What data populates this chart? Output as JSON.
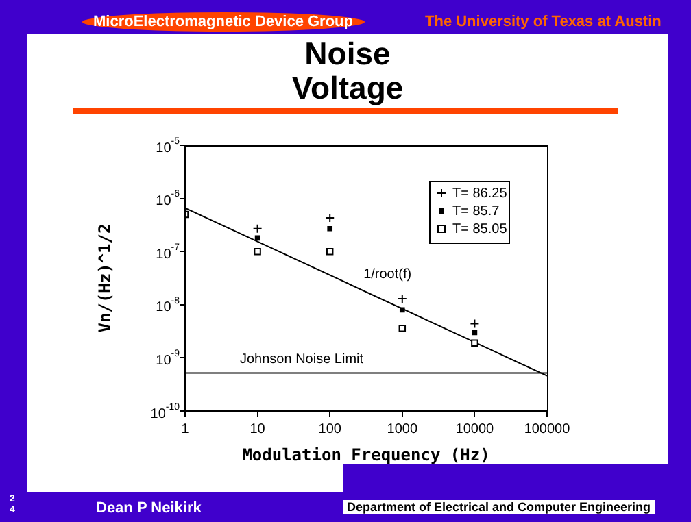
{
  "chart_data": {
    "type": "scatter",
    "title": "Noise Voltage",
    "xlabel": "Modulation Frequency (Hz)",
    "ylabel": "Vn/(Hz)^1/2",
    "annotations": [
      "MicroElectromagnetic Device Group",
      "The University of Texas at Austin",
      "Dean P Neikirk",
      "Department of Electrical and Computer Engineering",
      "24"
    ],
    "log": "xy",
    "grid": false,
    "legend": "top right",
    "xlim": [
      1,
      100000
    ],
    "xticks": [
      1,
      10,
      100,
      1000,
      10000,
      100000
    ],
    "ylim": [
      1e-10,
      1e-05
    ],
    "yticks": [
      {
        "value": 1e-10,
        "label": "10$^{-10}$"
      },
      {
        "value": 1e-09,
        "label": "10$^{-9}$"
      },
      {
        "value": 1e-08,
        "label": "10$^{-8}$"
      },
      {
        "value": 1e-07,
        "label": "10$^{-7}$"
      },
      {
        "value": 1e-06,
        "label": "10$^{-6}$"
      },
      {
        "value": 1e-05,
        "label": "10$^{-5}$"
      }
    ],
    "series": [
      {
        "name": "T= 86.25",
        "color": "#000000",
        "marker": "cross",
        "x": [
          10,
          100,
          1000,
          10000
        ],
        "values": [
          2.7e-07,
          4.3e-07,
          1.3e-08,
          4.4e-09
        ]
      },
      {
        "name": "T= 85.7",
        "color": "#000000",
        "marker": "square",
        "x": [
          10,
          100,
          1000,
          10000
        ],
        "values": [
          1.8e-07,
          2.7e-07,
          8e-09,
          3e-09
        ]
      },
      {
        "name": "T= 85.05",
        "color": "#000000",
        "marker": "square",
        "x": [
          1,
          10,
          100,
          1000,
          10000
        ],
        "values": [
          5e-07,
          1e-07,
          1e-07,
          3.6e-09,
          1.9e-09
        ]
      },
      {
        "name": "1/root(f)",
        "type": "line",
        "color": "#000000",
        "marker": "none",
        "x": [
          1,
          100000
        ],
        "values": [
          6.6e-07,
          4.6e-10
        ]
      }
    ],
    "ref_lines": [
      {
        "axis": "y",
        "value": 5.2e-10,
        "label": "Johnson Noise Limit",
        "color": "#000000"
      }
    ]
  }
}
